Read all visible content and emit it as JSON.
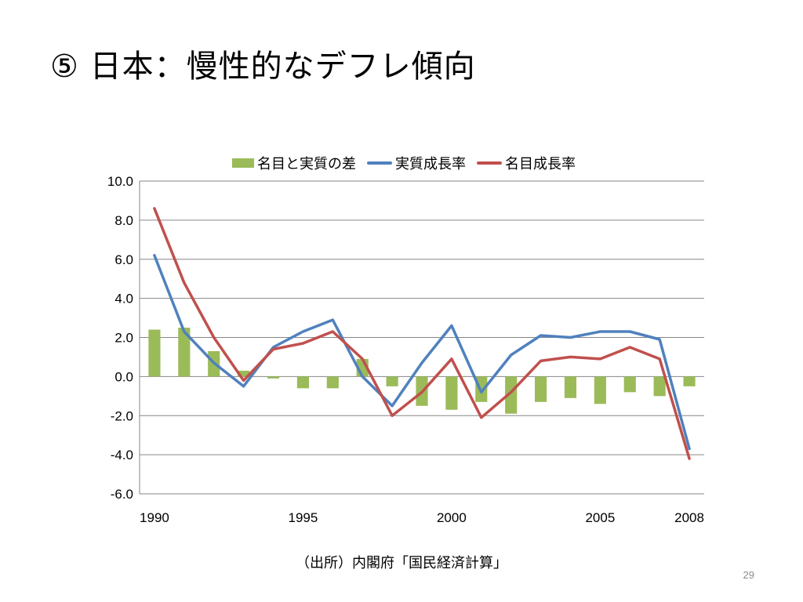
{
  "slide": {
    "title": "⑤ 日本：慢性的なデフレ傾向",
    "source": "（出所）内閣府「国民経済計算」",
    "page_number": "29"
  },
  "chart_data": {
    "type": "bar",
    "years": [
      1990,
      1991,
      1992,
      1993,
      1994,
      1995,
      1996,
      1997,
      1998,
      1999,
      2000,
      2001,
      2002,
      2003,
      2004,
      2005,
      2006,
      2007,
      2008
    ],
    "x_tick_labels": [
      "1990",
      "1995",
      "2000",
      "2005",
      "2008"
    ],
    "x_tick_years": [
      1990,
      1995,
      2000,
      2005,
      2008
    ],
    "y_ticks": [
      "10.0",
      "8.0",
      "6.0",
      "4.0",
      "2.0",
      "0.0",
      "-2.0",
      "-4.0",
      "-6.0"
    ],
    "ylim": [
      -6,
      10
    ],
    "grid": true,
    "legend_position": "top",
    "series": [
      {
        "name": "名目と実質の差",
        "kind": "bar",
        "color": "#9bbb59",
        "values": [
          2.4,
          2.5,
          1.3,
          0.3,
          -0.1,
          -0.6,
          -0.6,
          0.9,
          -0.5,
          -1.5,
          -1.7,
          -1.3,
          -1.9,
          -1.3,
          -1.1,
          -1.4,
          -0.8,
          -1.0,
          -0.5
        ]
      },
      {
        "name": "実質成長率",
        "kind": "line",
        "color": "#4f81bd",
        "values": [
          6.2,
          2.3,
          0.7,
          -0.5,
          1.5,
          2.3,
          2.9,
          0.0,
          -1.5,
          0.7,
          2.6,
          -0.8,
          1.1,
          2.1,
          2.0,
          2.3,
          2.3,
          1.9,
          -3.7
        ]
      },
      {
        "name": "名目成長率",
        "kind": "line",
        "color": "#c0504d",
        "values": [
          8.6,
          4.8,
          2.0,
          -0.2,
          1.4,
          1.7,
          2.3,
          0.9,
          -2.0,
          -0.8,
          0.9,
          -2.1,
          -0.8,
          0.8,
          1.0,
          0.9,
          1.5,
          0.9,
          -4.2
        ]
      }
    ]
  }
}
